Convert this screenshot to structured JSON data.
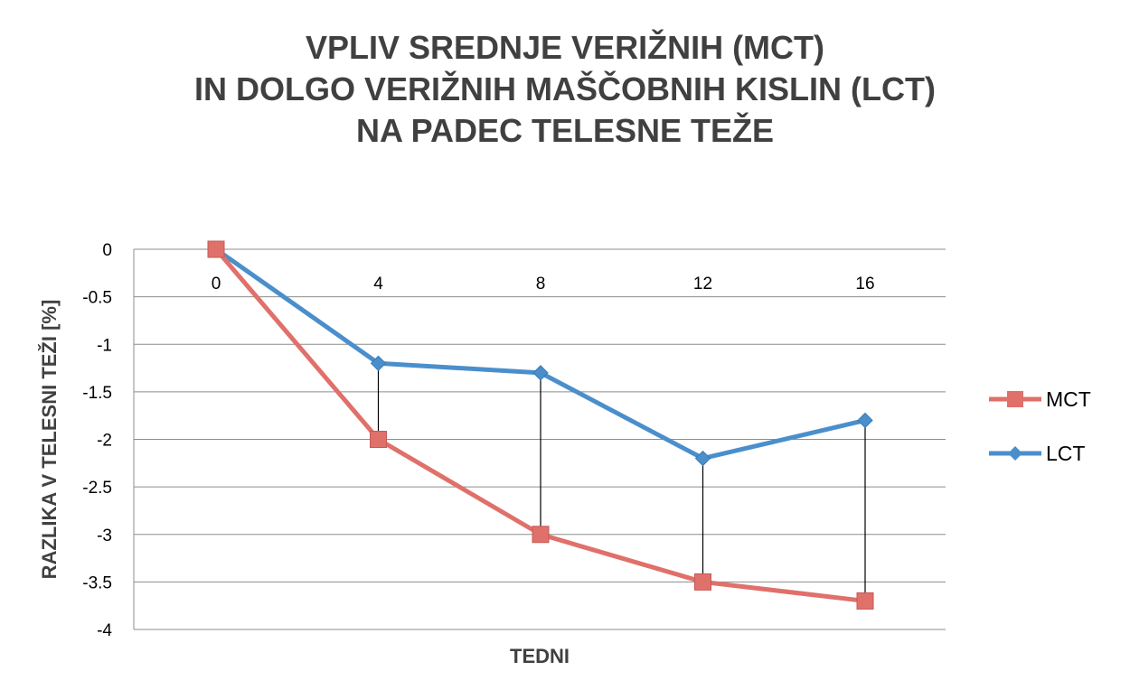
{
  "chart_data": {
    "type": "line",
    "title_lines": [
      "VPLIV SREDNJE VERIŽNIH (MCT)",
      "IN DOLGO VERIŽNIH MAŠČOBNIH KISLIN (LCT)",
      "NA PADEC TELESNE TEŽE"
    ],
    "xlabel": "TEDNI",
    "ylabel": "RAZLIKA V TELESNI TEŽI [%]",
    "categories": [
      "0",
      "4",
      "8",
      "12",
      "16"
    ],
    "y_ticks": [
      "0",
      "-0.5",
      "-1",
      "-1.5",
      "-2",
      "-2.5",
      "-3",
      "-3.5",
      "-4"
    ],
    "ylim": [
      -4,
      0
    ],
    "grid": true,
    "legend_position": "right",
    "drop_lines": true,
    "series": [
      {
        "name": "MCT",
        "color": "#e0706a",
        "marker": "square",
        "values": [
          0,
          -2,
          -3,
          -3.5,
          -3.7
        ]
      },
      {
        "name": "LCT",
        "color": "#4a8fcc",
        "marker": "diamond",
        "values": [
          0,
          -1.2,
          -1.3,
          -2.2,
          -1.8
        ]
      }
    ]
  }
}
